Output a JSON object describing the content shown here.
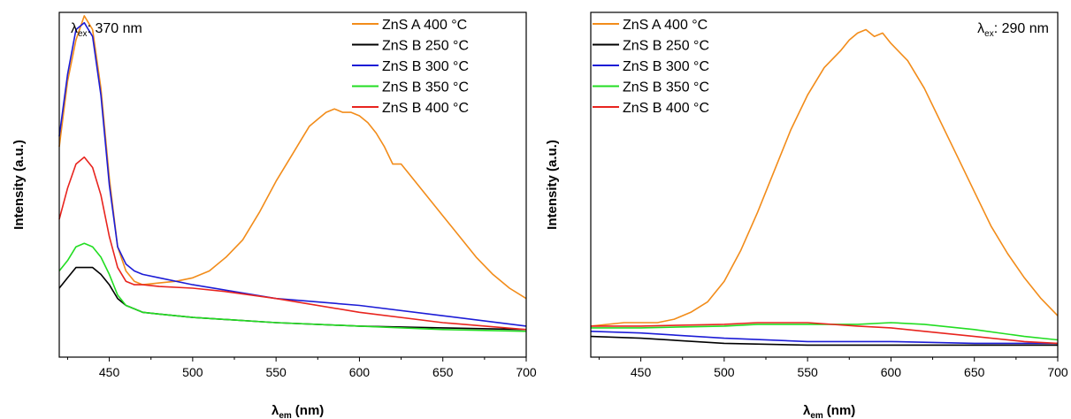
{
  "chart_data": [
    {
      "type": "line",
      "panel": "left",
      "xlabel_main": "λ",
      "xlabel_sub": "em",
      "xlabel_unit": "(nm)",
      "ylabel": "Intensity (a.u.)",
      "xlim": [
        420,
        700
      ],
      "ylim": [
        0,
        1
      ],
      "x_ticks": [
        "450",
        "500",
        "550",
        "600",
        "650",
        "700"
      ],
      "y_ticks_shown": false,
      "annotation": {
        "main": "λ",
        "sub": "ex",
        "rest": ": 370 nm",
        "position": "top-left"
      },
      "legend_position": "top-right",
      "series": [
        {
          "name": "ZnS A 400 °C",
          "color": "#f28c1a",
          "x": [
            420,
            425,
            430,
            435,
            440,
            445,
            450,
            455,
            460,
            465,
            470,
            480,
            490,
            500,
            510,
            520,
            530,
            540,
            550,
            560,
            565,
            570,
            575,
            580,
            585,
            590,
            595,
            600,
            605,
            610,
            615,
            620,
            625,
            630,
            640,
            650,
            660,
            670,
            680,
            690,
            700
          ],
          "y": [
            0.61,
            0.8,
            0.92,
            0.99,
            0.95,
            0.78,
            0.52,
            0.32,
            0.25,
            0.22,
            0.21,
            0.215,
            0.22,
            0.23,
            0.25,
            0.29,
            0.34,
            0.42,
            0.51,
            0.59,
            0.63,
            0.67,
            0.69,
            0.71,
            0.72,
            0.71,
            0.71,
            0.7,
            0.68,
            0.65,
            0.61,
            0.56,
            0.56,
            0.53,
            0.47,
            0.41,
            0.35,
            0.29,
            0.24,
            0.2,
            0.17
          ]
        },
        {
          "name": "ZnS B 250 °C",
          "color": "#000000",
          "x": [
            420,
            425,
            430,
            435,
            440,
            445,
            450,
            455,
            460,
            465,
            470,
            480,
            500,
            550,
            600,
            650,
            700
          ],
          "y": [
            0.2,
            0.23,
            0.26,
            0.26,
            0.26,
            0.24,
            0.21,
            0.17,
            0.15,
            0.14,
            0.13,
            0.125,
            0.115,
            0.1,
            0.09,
            0.085,
            0.08
          ]
        },
        {
          "name": "ZnS B 300 °C",
          "color": "#1c1cd6",
          "x": [
            420,
            425,
            430,
            435,
            440,
            445,
            450,
            455,
            460,
            465,
            470,
            480,
            500,
            550,
            600,
            650,
            700
          ],
          "y": [
            0.64,
            0.82,
            0.95,
            0.97,
            0.93,
            0.76,
            0.5,
            0.32,
            0.27,
            0.25,
            0.24,
            0.23,
            0.21,
            0.17,
            0.15,
            0.12,
            0.09
          ]
        },
        {
          "name": "ZnS B 350 °C",
          "color": "#22dd22",
          "x": [
            420,
            425,
            430,
            435,
            440,
            445,
            450,
            455,
            460,
            465,
            470,
            480,
            500,
            550,
            600,
            650,
            700
          ],
          "y": [
            0.25,
            0.28,
            0.32,
            0.33,
            0.32,
            0.29,
            0.24,
            0.18,
            0.15,
            0.14,
            0.13,
            0.125,
            0.115,
            0.1,
            0.09,
            0.08,
            0.075
          ]
        },
        {
          "name": "ZnS B 400 °C",
          "color": "#e8241e",
          "x": [
            420,
            425,
            430,
            435,
            440,
            445,
            450,
            455,
            460,
            465,
            470,
            480,
            500,
            520,
            550,
            600,
            650,
            700
          ],
          "y": [
            0.4,
            0.49,
            0.56,
            0.58,
            0.55,
            0.47,
            0.35,
            0.26,
            0.22,
            0.21,
            0.21,
            0.205,
            0.2,
            0.19,
            0.17,
            0.13,
            0.1,
            0.08
          ]
        }
      ]
    },
    {
      "type": "line",
      "panel": "right",
      "xlabel_main": "λ",
      "xlabel_sub": "em",
      "xlabel_unit": "(nm)",
      "ylabel": "Intensity (a.u.)",
      "xlim": [
        420,
        700
      ],
      "ylim": [
        0,
        1
      ],
      "x_ticks": [
        "450",
        "500",
        "550",
        "600",
        "650",
        "700"
      ],
      "y_ticks_shown": false,
      "annotation": {
        "main": "λ",
        "sub": "ex",
        "rest": ": 290 nm",
        "position": "top-right"
      },
      "legend_position": "top-left",
      "series": [
        {
          "name": "ZnS A 400 °C",
          "color": "#f28c1a",
          "x": [
            420,
            440,
            460,
            470,
            480,
            490,
            500,
            510,
            520,
            530,
            540,
            550,
            560,
            570,
            575,
            580,
            585,
            590,
            595,
            600,
            610,
            620,
            630,
            640,
            650,
            660,
            670,
            680,
            690,
            700
          ],
          "y": [
            0.09,
            0.1,
            0.1,
            0.11,
            0.13,
            0.16,
            0.22,
            0.31,
            0.42,
            0.54,
            0.66,
            0.76,
            0.84,
            0.89,
            0.92,
            0.94,
            0.95,
            0.93,
            0.94,
            0.91,
            0.86,
            0.78,
            0.68,
            0.58,
            0.48,
            0.38,
            0.3,
            0.23,
            0.17,
            0.12
          ]
        },
        {
          "name": "ZnS B 250 °C",
          "color": "#000000",
          "x": [
            420,
            450,
            500,
            550,
            600,
            650,
            700
          ],
          "y": [
            0.06,
            0.055,
            0.04,
            0.035,
            0.035,
            0.035,
            0.035
          ]
        },
        {
          "name": "ZnS B 300 °C",
          "color": "#1c1cd6",
          "x": [
            420,
            450,
            500,
            550,
            600,
            650,
            700
          ],
          "y": [
            0.075,
            0.07,
            0.055,
            0.045,
            0.045,
            0.04,
            0.04
          ]
        },
        {
          "name": "ZnS B 350 °C",
          "color": "#22dd22",
          "x": [
            420,
            450,
            500,
            520,
            550,
            580,
            600,
            620,
            650,
            680,
            700
          ],
          "y": [
            0.085,
            0.085,
            0.09,
            0.095,
            0.095,
            0.095,
            0.1,
            0.095,
            0.08,
            0.06,
            0.05
          ]
        },
        {
          "name": "ZnS B 400 °C",
          "color": "#e8241e",
          "x": [
            420,
            450,
            500,
            520,
            550,
            580,
            600,
            620,
            650,
            680,
            700
          ],
          "y": [
            0.09,
            0.09,
            0.095,
            0.1,
            0.1,
            0.09,
            0.085,
            0.075,
            0.06,
            0.045,
            0.04
          ]
        }
      ]
    }
  ]
}
